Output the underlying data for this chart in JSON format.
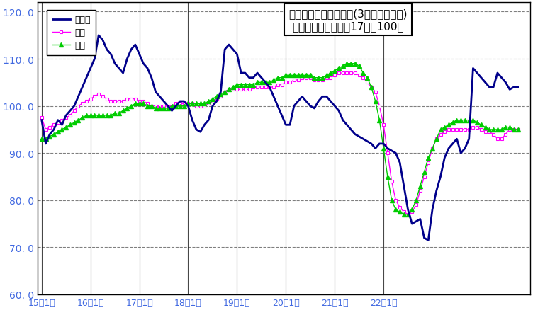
{
  "title_line1": "鉱工業生産指数の推移(3ヶ月移動平均)",
  "title_line2": "（季節調整済、平成17年＝100）",
  "legend_labels": [
    "鳥取県",
    "中国",
    "全国"
  ],
  "line_colors": [
    "#00008B",
    "#FF00FF",
    "#00CC00"
  ],
  "ylim": [
    60.0,
    122.0
  ],
  "yticks": [
    60.0,
    70.0,
    80.0,
    90.0,
    100.0,
    110.0,
    120.0
  ],
  "background_color": "#FFFFFF",
  "xtick_labels": [
    "15年1月",
    "16年1月",
    "17年1月",
    "18年1月",
    "19年1月",
    "20年1月",
    "21年1月",
    "22年1月"
  ],
  "tottori": [
    97.0,
    92.0,
    94.0,
    95.0,
    97.0,
    96.0,
    98.0,
    99.0,
    100.0,
    102.0,
    104.0,
    106.0,
    108.0,
    110.0,
    115.0,
    114.0,
    112.0,
    111.0,
    109.0,
    108.0,
    107.0,
    110.0,
    112.0,
    113.0,
    111.0,
    109.0,
    108.0,
    106.0,
    103.0,
    102.0,
    101.0,
    100.0,
    99.0,
    100.0,
    101.0,
    101.0,
    100.0,
    97.0,
    95.0,
    94.5,
    96.0,
    97.0,
    100.0,
    101.0,
    103.0,
    112.0,
    113.0,
    112.0,
    111.0,
    107.0,
    107.0,
    106.0,
    106.0,
    107.0,
    106.0,
    105.0,
    104.0,
    102.0,
    100.0,
    98.0,
    96.0,
    96.0,
    100.0,
    101.0,
    102.0,
    101.0,
    100.0,
    99.5,
    101.0,
    102.0,
    102.0,
    101.0,
    100.0,
    99.0,
    97.0,
    96.0,
    95.0,
    94.0,
    93.5,
    93.0,
    92.5,
    92.0,
    91.0,
    92.0,
    92.0,
    91.0,
    90.5,
    90.0,
    88.0,
    83.0,
    78.0,
    75.0,
    75.5,
    76.0,
    72.0,
    71.5,
    78.0,
    82.0,
    85.0,
    89.0,
    91.0,
    92.0,
    93.0,
    90.0,
    91.0,
    93.0,
    108.0,
    107.0,
    106.0,
    105.0,
    104.0,
    104.0,
    107.0,
    106.0,
    105.0,
    103.5,
    104.0,
    104.0
  ],
  "chugoku": [
    97.5,
    95.0,
    95.5,
    96.0,
    96.5,
    97.0,
    97.5,
    98.0,
    99.0,
    100.0,
    100.5,
    101.0,
    101.5,
    102.0,
    102.5,
    102.0,
    101.5,
    101.0,
    101.0,
    101.0,
    101.0,
    101.5,
    101.5,
    101.5,
    101.0,
    101.0,
    100.5,
    100.0,
    100.0,
    100.0,
    100.0,
    100.0,
    100.0,
    100.5,
    100.5,
    100.5,
    100.5,
    100.5,
    100.0,
    100.0,
    100.0,
    100.5,
    101.0,
    101.5,
    102.0,
    103.0,
    103.5,
    103.5,
    103.5,
    103.5,
    103.5,
    103.5,
    104.0,
    104.0,
    104.0,
    104.0,
    104.0,
    104.0,
    104.5,
    104.5,
    105.0,
    105.0,
    105.5,
    105.5,
    106.0,
    106.0,
    106.0,
    105.5,
    105.5,
    105.5,
    106.0,
    106.0,
    106.5,
    107.0,
    107.0,
    107.0,
    107.0,
    107.0,
    106.5,
    106.0,
    105.0,
    104.0,
    103.0,
    100.0,
    96.0,
    90.0,
    84.0,
    80.0,
    78.5,
    77.5,
    77.0,
    77.5,
    79.0,
    82.0,
    85.0,
    88.0,
    91.0,
    93.0,
    94.0,
    94.5,
    95.0,
    95.0,
    95.0,
    95.0,
    95.0,
    95.0,
    95.5,
    95.5,
    95.0,
    94.5,
    94.5,
    94.0,
    93.0,
    93.0,
    94.0,
    95.0,
    95.0,
    95.0
  ],
  "zenkoku": [
    93.0,
    93.0,
    93.5,
    94.0,
    94.5,
    95.0,
    95.5,
    96.0,
    96.5,
    97.0,
    97.5,
    98.0,
    98.0,
    98.0,
    98.0,
    98.0,
    98.0,
    98.0,
    98.5,
    98.5,
    99.0,
    99.5,
    100.0,
    100.5,
    100.5,
    100.5,
    100.0,
    100.0,
    99.5,
    99.5,
    99.5,
    99.5,
    100.0,
    100.0,
    100.0,
    100.0,
    100.5,
    100.5,
    100.5,
    100.5,
    100.5,
    101.0,
    101.5,
    102.0,
    102.5,
    103.0,
    103.5,
    104.0,
    104.5,
    104.5,
    104.5,
    104.5,
    104.5,
    105.0,
    105.0,
    105.0,
    105.0,
    105.5,
    106.0,
    106.0,
    106.5,
    106.5,
    106.5,
    106.5,
    106.5,
    106.5,
    106.5,
    106.0,
    106.0,
    106.0,
    106.5,
    107.0,
    107.5,
    108.0,
    108.5,
    109.0,
    109.0,
    109.0,
    108.5,
    107.0,
    106.0,
    104.0,
    101.0,
    97.0,
    91.0,
    85.0,
    80.0,
    78.0,
    77.5,
    77.0,
    77.0,
    78.0,
    80.0,
    83.0,
    86.0,
    89.0,
    91.0,
    93.0,
    95.0,
    95.5,
    96.0,
    96.5,
    97.0,
    97.0,
    97.0,
    97.0,
    97.0,
    96.5,
    96.0,
    95.5,
    95.0,
    95.0,
    95.0,
    95.0,
    95.5,
    95.5,
    95.0,
    95.0
  ],
  "tick_color": "#4169E1",
  "ytick_fontsize": 9,
  "xtick_fontsize": 9,
  "title_fontsize": 11,
  "legend_fontsize": 9
}
